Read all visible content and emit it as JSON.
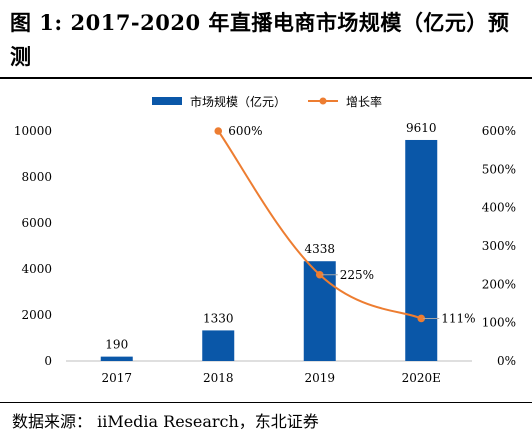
{
  "figure": {
    "title": "图  1:  2017-2020 年直播电商市场规模（亿元）预测",
    "source": "数据来源：  iiMedia Research，东北证券"
  },
  "colors": {
    "bar": "#0a57a8",
    "line": "#ed7d31"
  },
  "chart_data": {
    "type": "bar",
    "categories": [
      "2017",
      "2018",
      "2019",
      "2020E"
    ],
    "series": [
      {
        "name": "市场规模（亿元）",
        "type": "bar",
        "axis": "left",
        "values": [
          190,
          1330,
          4338,
          9610
        ],
        "labels": [
          "190",
          "1330",
          "4338",
          "9610"
        ]
      },
      {
        "name": "增长率",
        "type": "line",
        "axis": "right",
        "values": [
          null,
          600,
          225,
          111
        ],
        "labels": [
          "",
          "600%",
          "225%",
          "111%"
        ]
      }
    ],
    "y_left": {
      "range": [
        0,
        10000
      ],
      "ticks": [
        "0",
        "2000",
        "4000",
        "6000",
        "8000",
        "10000"
      ]
    },
    "y_right": {
      "range": [
        0,
        600
      ],
      "ticks": [
        "0%",
        "100%",
        "200%",
        "300%",
        "400%",
        "500%",
        "600%"
      ]
    },
    "grid": false,
    "legend": "top"
  }
}
